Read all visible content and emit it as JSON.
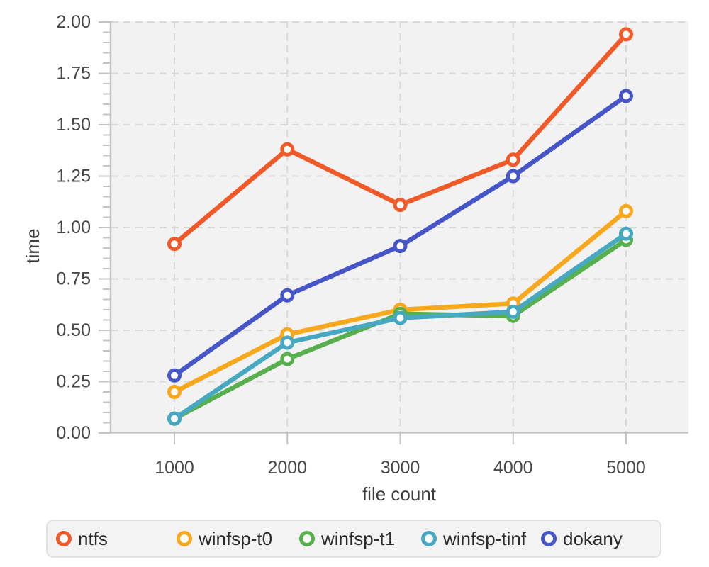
{
  "chart_data": {
    "type": "line",
    "title": "",
    "xlabel": "file count",
    "ylabel": "time",
    "x": [
      1000,
      2000,
      3000,
      4000,
      5000
    ],
    "x_tick_labels": [
      "1000",
      "2000",
      "3000",
      "4000",
      "5000"
    ],
    "y_tick_labels": [
      "0.00",
      "0.25",
      "0.50",
      "0.75",
      "1.00",
      "1.25",
      "1.50",
      "1.75",
      "2.00"
    ],
    "ylim": [
      0.0,
      2.0
    ],
    "y_major_step": 0.25,
    "y_minor_step": 0.05,
    "grid": "dashed",
    "panel_background": "#f2f2f2",
    "gridline_color": "#d9d9d9",
    "axis_color": "#c4c4c4",
    "tick_label_color": "#474747",
    "marker": "open-circle",
    "legend_position": "bottom",
    "series": [
      {
        "name": "ntfs",
        "color": "#EF5A28",
        "values": [
          0.92,
          1.38,
          1.11,
          1.33,
          1.94
        ]
      },
      {
        "name": "winfsp-t0",
        "color": "#F8A81D",
        "values": [
          0.2,
          0.48,
          0.6,
          0.63,
          1.08
        ]
      },
      {
        "name": "winfsp-t1",
        "color": "#57B04D",
        "values": [
          0.07,
          0.36,
          0.58,
          0.57,
          0.94
        ]
      },
      {
        "name": "winfsp-tinf",
        "color": "#47A8C2",
        "values": [
          0.07,
          0.44,
          0.56,
          0.59,
          0.97
        ]
      },
      {
        "name": "dokany",
        "color": "#4656C8",
        "values": [
          0.28,
          0.67,
          0.91,
          1.25,
          1.64
        ]
      }
    ]
  }
}
